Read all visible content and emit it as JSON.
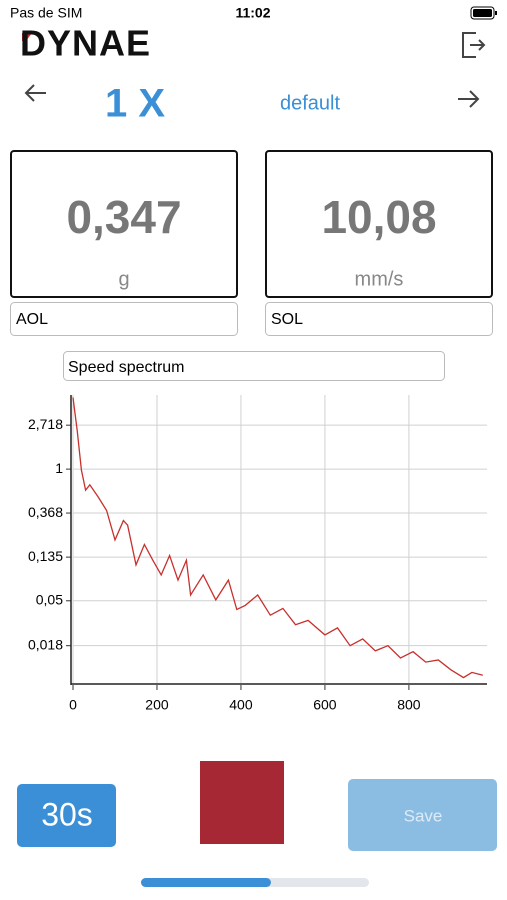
{
  "status_bar": {
    "carrier": "Pas de SIM",
    "time": "11:02"
  },
  "header": {
    "logo": "DYNAE"
  },
  "nav": {
    "title": "1 X",
    "preset": "default"
  },
  "readings": [
    {
      "value": "0,347",
      "unit": "g",
      "label": "AOL"
    },
    {
      "value": "10,08",
      "unit": "mm/s",
      "label": "SOL"
    }
  ],
  "spectrum_selector": "Speed spectrum",
  "chart_data": {
    "type": "line",
    "log_scale_y": true,
    "grid": true,
    "color": "#c8302c",
    "x": [
      0,
      10,
      20,
      30,
      40,
      60,
      80,
      100,
      120,
      130,
      150,
      170,
      190,
      210,
      230,
      250,
      270,
      280,
      310,
      340,
      370,
      390,
      410,
      440,
      470,
      500,
      530,
      560,
      600,
      630,
      660,
      690,
      720,
      750,
      780,
      810,
      840,
      870,
      900,
      930,
      950,
      976
    ],
    "values": [
      5.1,
      2.4,
      0.98,
      0.62,
      0.7,
      0.53,
      0.39,
      0.2,
      0.31,
      0.28,
      0.113,
      0.18,
      0.126,
      0.09,
      0.14,
      0.08,
      0.126,
      0.057,
      0.09,
      0.051,
      0.08,
      0.041,
      0.045,
      0.057,
      0.036,
      0.042,
      0.029,
      0.032,
      0.023,
      0.027,
      0.018,
      0.021,
      0.016,
      0.018,
      0.0136,
      0.0157,
      0.0124,
      0.013,
      0.0104,
      0.0087,
      0.0098,
      0.0092
    ],
    "xlim": [
      0,
      986
    ],
    "xticks": [
      0,
      200,
      400,
      600,
      800
    ],
    "ylim": [
      0.0077,
      5.4
    ],
    "yticks": [
      {
        "value": 2.718,
        "label": "2,718"
      },
      1,
      {
        "value": 0.368,
        "label": "0,368"
      },
      {
        "value": 0.135,
        "label": "0,135"
      },
      {
        "value": 0.05,
        "label": "0,05"
      },
      {
        "value": 0.018,
        "label": "0,018"
      }
    ]
  },
  "controls": {
    "duration_button": "30s",
    "save_button": "Save",
    "progress": 0.57
  }
}
